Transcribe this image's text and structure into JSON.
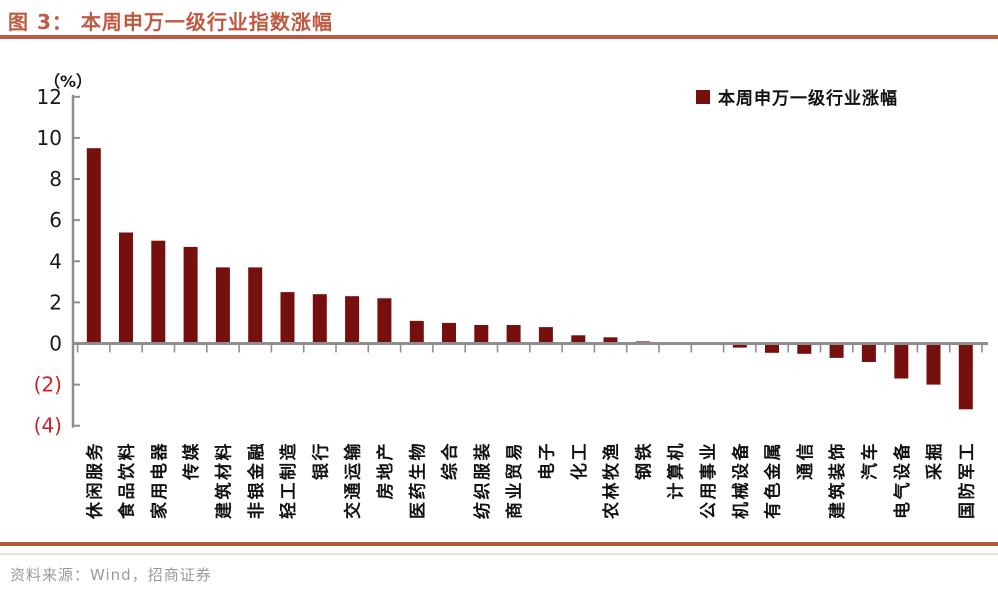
{
  "header": {
    "title": "图 3：  本周申万一级行业指数涨幅"
  },
  "footer": {
    "source": "资料来源：Wind，招商证券"
  },
  "chart_data": {
    "type": "bar",
    "title": "本周申万一级行业指数涨幅",
    "unit_label": "（%）",
    "series_name": "本周申万一级行业涨幅",
    "categories": [
      "休闲服务",
      "食品饮料",
      "家用电器",
      "传媒",
      "建筑材料",
      "非银金融",
      "轻工制造",
      "银行",
      "交通运输",
      "房地产",
      "医药生物",
      "综合",
      "纺织服装",
      "商业贸易",
      "电子",
      "化工",
      "农林牧渔",
      "钢铁",
      "计算机",
      "公用事业",
      "机械设备",
      "有色金属",
      "通信",
      "建筑装饰",
      "汽车",
      "电气设备",
      "采掘",
      "国防军工"
    ],
    "values": [
      9.5,
      5.4,
      5.0,
      4.7,
      3.7,
      3.7,
      2.5,
      2.4,
      2.3,
      2.2,
      1.1,
      1.0,
      0.9,
      0.9,
      0.8,
      0.4,
      0.3,
      0.1,
      0.02,
      -0.02,
      -0.2,
      -0.45,
      -0.5,
      -0.7,
      -0.9,
      -1.7,
      -2.0,
      -3.2
    ],
    "ylim": [
      -4,
      12
    ],
    "ytick_step": 2,
    "negative_tick_format": "parentheses",
    "grid": false,
    "legend_position": "top-right",
    "colors": {
      "bar": "#76100F",
      "accent_rule": "#BE5A41",
      "axis": "#8E8E8E",
      "tick_label_positive": "#1A1A1A",
      "tick_label_negative": "#CC2127",
      "category_label": "#111111",
      "source_text": "#9A9A9A"
    }
  }
}
